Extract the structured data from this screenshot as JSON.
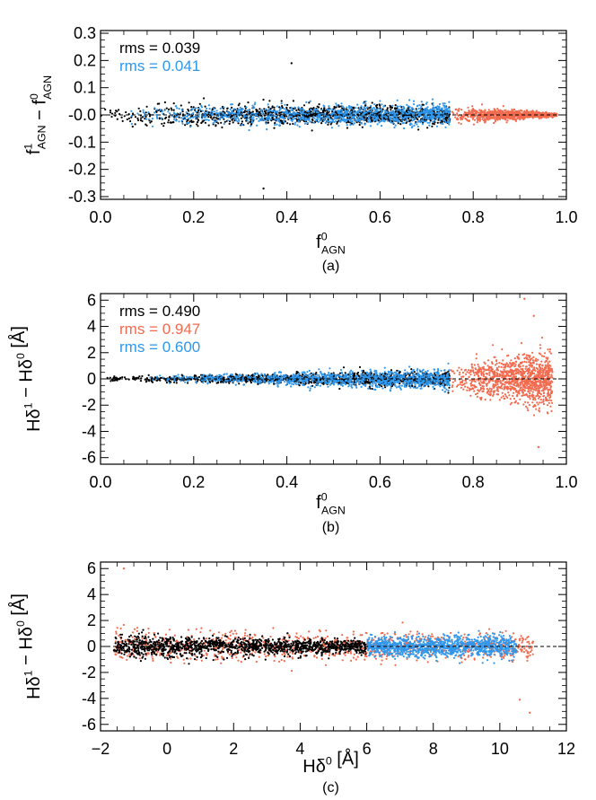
{
  "colors": {
    "black": "#000000",
    "red": "#f26b4f",
    "blue": "#2f97ec"
  },
  "chart_data": [
    {
      "type": "scatter",
      "panel_label": "(a)",
      "xlabel": {
        "main": "f",
        "sup": "0",
        "sub": "AGN"
      },
      "ylabel": {
        "parts": [
          {
            "main": "f",
            "sup": "1",
            "sub": "AGN"
          },
          {
            "main": " − f",
            "sup": "0",
            "sub": "AGN"
          }
        ]
      },
      "xlim": [
        0.0,
        1.0
      ],
      "ylim": [
        -0.31,
        0.31
      ],
      "xticks": [
        "0.0",
        "0.2",
        "0.4",
        "0.6",
        "0.8",
        "1.0"
      ],
      "yticks": [
        "0.3",
        "0.2",
        "0.1",
        "-0.0",
        "-0.1",
        "-0.2",
        "-0.3"
      ],
      "reference_line": 0,
      "annotations": [
        {
          "text": "rms = 0.039",
          "color": "black"
        },
        {
          "text": "rms = 0.041",
          "color": "blue"
        }
      ],
      "series": [
        {
          "color": "black",
          "x_range": [
            0.0,
            0.75
          ],
          "y_spread": [
            0.04,
            0.03
          ],
          "outliers": [
            [
              0.35,
              -0.27
            ],
            [
              0.41,
              0.19
            ]
          ]
        },
        {
          "color": "blue",
          "x_range": [
            0.05,
            0.75
          ],
          "y_spread": [
            0.03,
            0.04
          ]
        },
        {
          "color": "red",
          "x_range": [
            0.75,
            0.98
          ],
          "y_spread": [
            0.035,
            0.005
          ]
        }
      ]
    },
    {
      "type": "scatter",
      "panel_label": "(b)",
      "xlabel": {
        "main": "f",
        "sup": "0",
        "sub": "AGN"
      },
      "ylabel": {
        "parts": [
          {
            "main": "Hδ",
            "sup": "1"
          },
          {
            "main": " − Hδ",
            "sup": "0"
          },
          {
            "main": " [Å]"
          }
        ]
      },
      "xlim": [
        0.0,
        1.0
      ],
      "ylim": [
        -6.5,
        6.5
      ],
      "xticks": [
        "0.0",
        "0.2",
        "0.4",
        "0.6",
        "0.8",
        "1.0"
      ],
      "yticks": [
        "6",
        "4",
        "2",
        "0",
        "-2",
        "-4",
        "-6"
      ],
      "reference_line": 0,
      "annotations": [
        {
          "text": "rms = 0.490",
          "color": "black"
        },
        {
          "text": "rms = 0.947",
          "color": "red"
        },
        {
          "text": "rms = 0.600",
          "color": "blue"
        }
      ],
      "series": [
        {
          "color": "black",
          "x_range": [
            0.0,
            0.75
          ],
          "y_spread": [
            0.15,
            0.6
          ]
        },
        {
          "color": "blue",
          "x_range": [
            0.1,
            0.75
          ],
          "y_spread": [
            0.2,
            0.8
          ]
        },
        {
          "color": "red",
          "x_range": [
            0.75,
            0.97
          ],
          "y_spread": [
            1.0,
            2.2
          ],
          "outliers": [
            [
              0.93,
              4.8
            ],
            [
              0.94,
              -5.2
            ],
            [
              0.91,
              6.1
            ]
          ]
        }
      ]
    },
    {
      "type": "scatter",
      "panel_label": "(c)",
      "xlabel": {
        "main": "Hδ",
        "sup": "0",
        "tail": " [Å]"
      },
      "ylabel": {
        "parts": [
          {
            "main": "Hδ",
            "sup": "1"
          },
          {
            "main": " − Hδ",
            "sup": "0"
          },
          {
            "main": " [Å]"
          }
        ]
      },
      "xlim": [
        -2,
        12
      ],
      "ylim": [
        -6.5,
        6.5
      ],
      "xticks": [
        "−2",
        "0",
        "2",
        "4",
        "6",
        "8",
        "10",
        "12"
      ],
      "yticks": [
        "6",
        "4",
        "2",
        "0",
        "-2",
        "-4",
        "-6"
      ],
      "reference_line": 0,
      "series": [
        {
          "color": "red",
          "x_range": [
            -1.6,
            11.0
          ],
          "y_spread": [
            1.2,
            1.0
          ],
          "outliers": [
            [
              -1.3,
              6.0
            ],
            [
              10.6,
              -4.1
            ],
            [
              10.9,
              -5.1
            ]
          ]
        },
        {
          "color": "black",
          "x_range": [
            -1.6,
            6.0
          ],
          "y_spread": [
            0.9,
            0.5
          ]
        },
        {
          "color": "blue",
          "x_range": [
            6.0,
            10.5
          ],
          "y_spread": [
            0.7,
            0.9
          ]
        }
      ]
    }
  ]
}
